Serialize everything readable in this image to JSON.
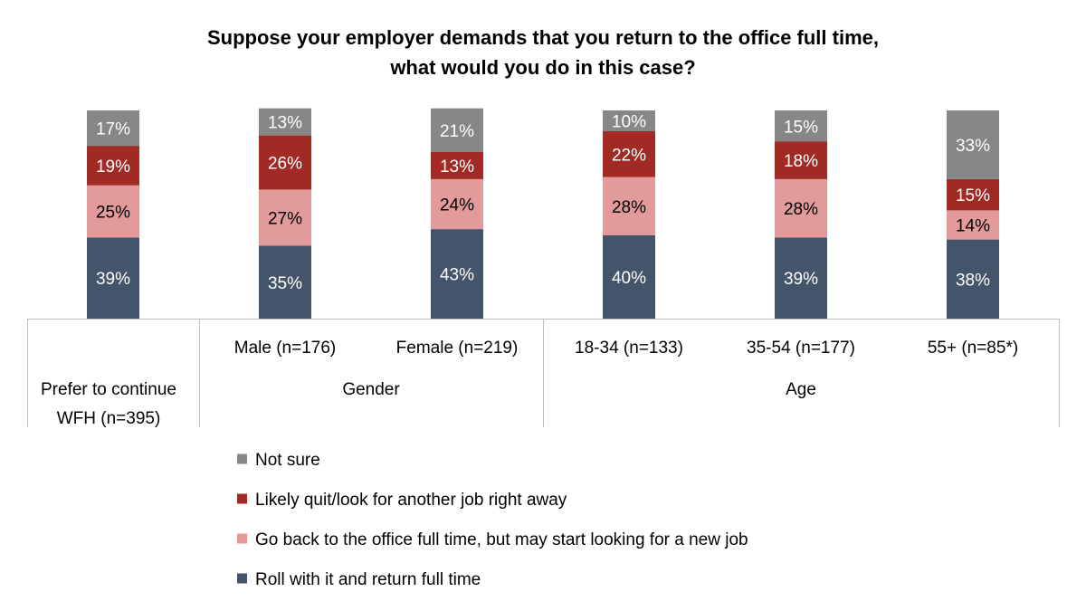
{
  "chart_data": {
    "type": "bar",
    "stacked": true,
    "title_lines": [
      "Suppose your employer demands that you return to the office full time,",
      "what would you do in this case?"
    ],
    "categories": [
      [
        "Prefer to continue",
        "WFH (n=395)"
      ],
      [
        "Male (n=176)"
      ],
      [
        "Female (n=219)"
      ],
      [
        "18-34 (n=133)"
      ],
      [
        "35-54 (n=177)"
      ],
      [
        "55+ (n=85*)"
      ]
    ],
    "groups": [
      {
        "label": "Gender",
        "categories": [
          1,
          2
        ]
      },
      {
        "label": "Age",
        "categories": [
          3,
          4,
          5
        ]
      }
    ],
    "ylim": [
      0,
      100
    ],
    "value_suffix": "%",
    "series": [
      {
        "name": "Roll with it and return full time",
        "color": "#44546A",
        "label_color": "#FFFFFF",
        "values": [
          39,
          35,
          43,
          40,
          39,
          38
        ]
      },
      {
        "name": "Go back to the office full time, but may start looking for a new job",
        "color": "#E39A9A",
        "label_color": "#000000",
        "values": [
          25,
          27,
          24,
          28,
          28,
          14
        ]
      },
      {
        "name": "Likely quit/look for another job right away",
        "color": "#A12A25",
        "label_color": "#FFFFFF",
        "values": [
          19,
          26,
          13,
          22,
          18,
          15
        ]
      },
      {
        "name": "Not sure",
        "color": "#878787",
        "label_color": "#FFFFFF",
        "values": [
          17,
          13,
          21,
          10,
          15,
          33
        ]
      }
    ],
    "legend_order": [
      3,
      2,
      1,
      0
    ],
    "legend_position": "bottom",
    "grid": false
  }
}
